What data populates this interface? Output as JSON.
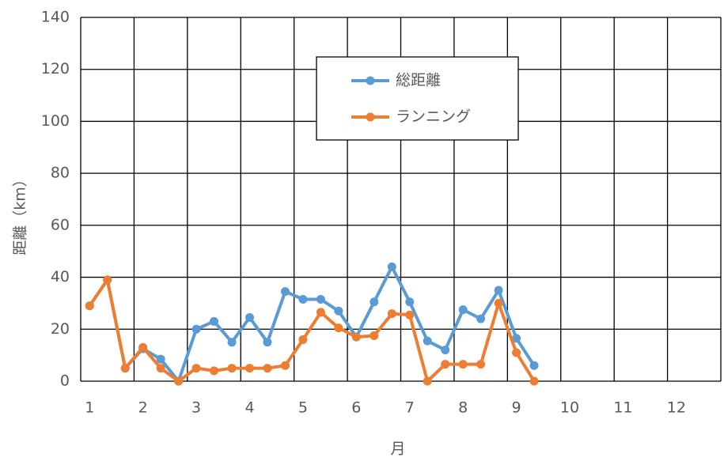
{
  "chart_data": {
    "type": "line",
    "x": [
      1,
      1.333,
      1.667,
      2,
      2.333,
      2.667,
      3,
      3.333,
      3.667,
      4,
      4.333,
      4.667,
      5,
      5.333,
      5.667,
      6,
      6.333,
      6.667,
      7,
      7.333,
      7.667,
      8,
      8.333,
      8.667,
      9,
      9.333
    ],
    "series": [
      {
        "name": "総距離",
        "color": "#5b9bd5",
        "values": [
          29,
          39,
          5,
          12.5,
          8.5,
          0,
          20,
          23,
          15,
          24.5,
          15,
          34.5,
          31.5,
          31.5,
          27,
          17,
          30.5,
          44,
          30.5,
          15.5,
          12,
          27.5,
          24,
          35,
          16.5,
          6
        ]
      },
      {
        "name": "ランニング",
        "color": "#ed7d31",
        "values": [
          29,
          39,
          5,
          13,
          5,
          0,
          5,
          4,
          5,
          5,
          5,
          6,
          16,
          26.5,
          20.5,
          17,
          17.5,
          26,
          25.5,
          0,
          6.5,
          6.5,
          6.5,
          30,
          11,
          0
        ]
      }
    ],
    "x_label": "月",
    "y_label": "距離（km）",
    "xlim": [
      0.833,
      12.833
    ],
    "xticks": [
      1,
      2,
      3,
      4,
      5,
      6,
      7,
      8,
      9,
      10,
      11,
      12
    ],
    "ylim": [
      0,
      140
    ],
    "yticks": [
      0,
      20,
      40,
      60,
      80,
      100,
      120,
      140
    ],
    "grid": true
  }
}
